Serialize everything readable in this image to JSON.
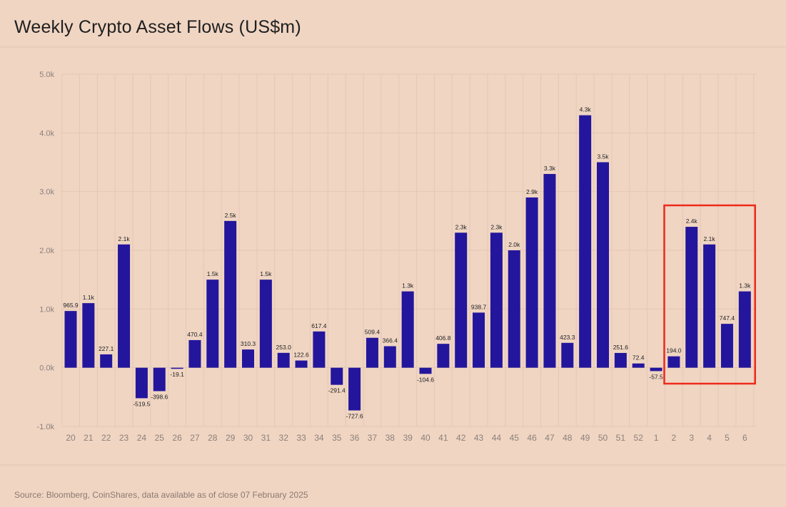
{
  "title": "Weekly Crypto Asset Flows (US$m)",
  "source": "Source: Bloomberg, CoinShares, data available as of close 07 February 2025",
  "colors": {
    "background": "#f0d5c3",
    "bar": "#23169c",
    "grid": "#e5c7b3",
    "highlight": "#ee2a1b"
  },
  "chart_data": {
    "type": "bar",
    "title": "Weekly Crypto Asset Flows (US$m)",
    "xlabel": "",
    "ylabel": "",
    "ylim": [
      -1000,
      5000
    ],
    "y_ticks": [
      -1000,
      0,
      1000,
      2000,
      3000,
      4000,
      5000
    ],
    "y_tick_labels": [
      "-1.0k",
      "0.0k",
      "1.0k",
      "2.0k",
      "3.0k",
      "4.0k",
      "5.0k"
    ],
    "categories": [
      "20",
      "21",
      "22",
      "23",
      "24",
      "25",
      "26",
      "27",
      "28",
      "29",
      "30",
      "31",
      "32",
      "33",
      "34",
      "35",
      "36",
      "37",
      "38",
      "39",
      "40",
      "41",
      "42",
      "43",
      "44",
      "45",
      "46",
      "47",
      "48",
      "49",
      "50",
      "51",
      "52",
      "1",
      "2",
      "3",
      "4",
      "5",
      "6"
    ],
    "values": [
      965.9,
      1100,
      227.1,
      2100,
      -519.5,
      -398.6,
      -19.1,
      470.4,
      1500,
      2500,
      310.3,
      1500,
      253.0,
      122.6,
      617.4,
      -291.4,
      -727.6,
      509.4,
      366.4,
      1300,
      -104.6,
      406.8,
      2300,
      938.7,
      2300,
      2000,
      2900,
      3300,
      423.3,
      4300,
      3500,
      251.6,
      72.4,
      -57.5,
      194.0,
      2400,
      2100,
      747.4,
      1300
    ],
    "value_labels": [
      "965.9",
      "1.1k",
      "227.1",
      "2.1k",
      "-519.5",
      "-398.6",
      "-19.1",
      "470.4",
      "1.5k",
      "2.5k",
      "310.3",
      "1.5k",
      "253.0",
      "122.6",
      "617.4",
      "-291.4",
      "-727.6",
      "509.4",
      "366.4",
      "1.3k",
      "-104.6",
      "406.8",
      "2.3k",
      "938.7",
      "2.3k",
      "2.0k",
      "2.9k",
      "3.3k",
      "423.3",
      "4.3k",
      "3.5k",
      "251.6",
      "72.4",
      "-57.5",
      "194.0",
      "2.4k",
      "2.1k",
      "747.4",
      "1.3k"
    ],
    "grid": true,
    "legend": "none",
    "highlight": {
      "categories": [
        "2",
        "3",
        "4",
        "5",
        "6"
      ]
    }
  }
}
